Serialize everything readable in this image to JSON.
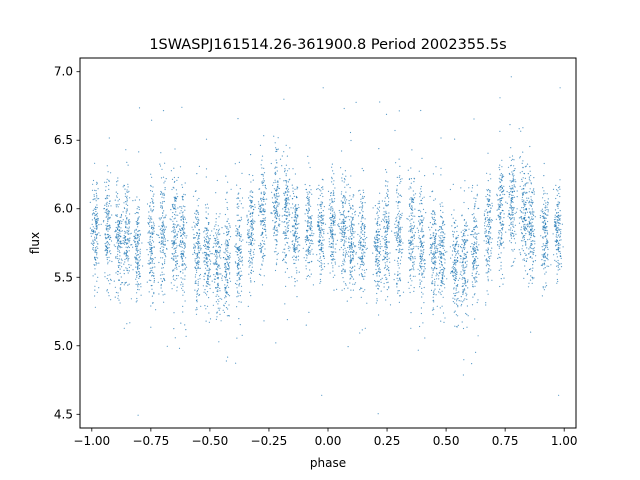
{
  "chart_data": {
    "type": "scatter",
    "title": "1SWASPJ161514.26-361900.8 Period 2002355.5s",
    "xlabel": "phase",
    "ylabel": "flux",
    "xlim": [
      -1.05,
      1.05
    ],
    "ylim": [
      4.4,
      7.1
    ],
    "x_ticks": [
      -1.0,
      -0.75,
      -0.5,
      -0.25,
      0.0,
      0.25,
      0.5,
      0.75,
      1.0
    ],
    "x_tick_labels": [
      "−1.00",
      "−0.75",
      "−0.50",
      "−0.25",
      "0.00",
      "0.25",
      "0.50",
      "0.75",
      "1.00"
    ],
    "y_ticks": [
      4.5,
      5.0,
      5.5,
      6.0,
      6.5,
      7.0
    ],
    "y_tick_labels": [
      "4.5",
      "5.0",
      "5.5",
      "6.0",
      "6.5",
      "7.0"
    ],
    "grid": false,
    "legend": "none",
    "point_color": "#1f77b4",
    "series": [
      {
        "x": [
          -1.0,
          -0.95,
          -0.9,
          -0.85,
          -0.8,
          -0.75,
          -0.7,
          -0.65,
          -0.6,
          -0.55,
          -0.5,
          -0.45,
          -0.4,
          -0.35,
          -0.3,
          -0.25,
          -0.2,
          -0.15,
          -0.1,
          -0.05,
          0.0,
          0.05,
          0.1,
          0.15,
          0.2,
          0.25,
          0.3,
          0.35,
          0.4,
          0.45,
          0.5,
          0.55,
          0.6,
          0.65,
          0.7,
          0.75,
          0.8,
          0.85,
          0.9,
          0.95,
          1.0
        ],
        "y": [
          5.85,
          5.85,
          5.8,
          5.8,
          5.7,
          5.75,
          5.8,
          5.85,
          5.75,
          5.7,
          5.65,
          5.55,
          5.65,
          5.8,
          5.9,
          6.0,
          6.05,
          5.9,
          5.8,
          5.85,
          5.85,
          5.85,
          5.8,
          5.75,
          5.7,
          5.8,
          5.8,
          5.85,
          5.75,
          5.7,
          5.65,
          5.55,
          5.65,
          5.8,
          5.9,
          6.0,
          6.05,
          5.9,
          5.8,
          5.85,
          5.85
        ],
        "spread": [
          0.18,
          0.18,
          0.2,
          0.2,
          0.18,
          0.2,
          0.22,
          0.22,
          0.2,
          0.2,
          0.18,
          0.2,
          0.2,
          0.2,
          0.2,
          0.2,
          0.2,
          0.2,
          0.18,
          0.18,
          0.18,
          0.18,
          0.2,
          0.2,
          0.18,
          0.2,
          0.22,
          0.22,
          0.2,
          0.2,
          0.18,
          0.2,
          0.2,
          0.2,
          0.2,
          0.2,
          0.2,
          0.2,
          0.18,
          0.18,
          0.18
        ]
      }
    ]
  }
}
